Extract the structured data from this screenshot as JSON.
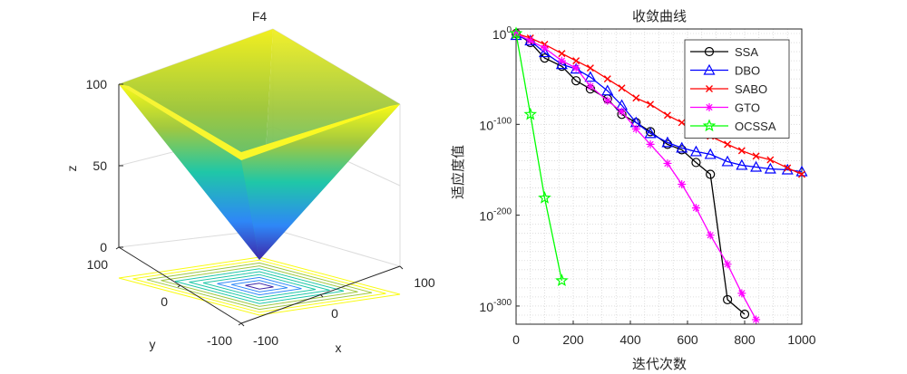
{
  "left_panel": {
    "title": "F4",
    "xlabel": "x",
    "ylabel": "y",
    "zlabel": "z",
    "z_ticks": [
      "0",
      "50",
      "100"
    ],
    "x_ticks": [
      "-100",
      "0",
      "100"
    ],
    "y_ticks": [
      "-100",
      "0",
      "100"
    ],
    "colormap": [
      "#3e26a8",
      "#2e87f7",
      "#1fc7a7",
      "#a0c840",
      "#f9fb15"
    ]
  },
  "chart_data": {
    "type": "line",
    "title": "收敛曲线",
    "xlabel": "迭代次数",
    "ylabel": "适应度值",
    "xlim": [
      0,
      1000
    ],
    "ylim_log10": [
      -320,
      5
    ],
    "y_scale": "log",
    "x_ticks": [
      "0",
      "200",
      "400",
      "600",
      "800",
      "1000"
    ],
    "y_ticks": [
      {
        "base": "10",
        "exp": "0",
        "log10": 0
      },
      {
        "base": "10",
        "exp": "-100",
        "log10": -100
      },
      {
        "base": "10",
        "exp": "-200",
        "log10": -200
      },
      {
        "base": "10",
        "exp": "-300",
        "log10": -300
      }
    ],
    "grid": "minor",
    "legend_position": "top-right",
    "series": [
      {
        "name": "SSA",
        "color": "#000000",
        "marker": "circle",
        "x": [
          0,
          50,
          100,
          160,
          210,
          260,
          320,
          370,
          420,
          470,
          530,
          580,
          630,
          680,
          740,
          800
        ],
        "log10_y": [
          0,
          -10,
          -27,
          -36,
          -52,
          -61,
          -72,
          -89,
          -98,
          -108,
          -122,
          -128,
          -142,
          -155,
          -293,
          -309
        ]
      },
      {
        "name": "DBO",
        "color": "#0000ff",
        "marker": "triangle",
        "x": [
          0,
          50,
          100,
          160,
          210,
          260,
          320,
          370,
          420,
          470,
          530,
          580,
          630,
          680,
          740,
          790,
          840,
          890,
          950,
          1000
        ],
        "log10_y": [
          -2,
          -8,
          -21,
          -34,
          -39,
          -48,
          -63,
          -79,
          -98,
          -110,
          -120,
          -126,
          -130,
          -133,
          -141,
          -145,
          -147,
          -149,
          -150,
          -152
        ]
      },
      {
        "name": "SABO",
        "color": "#ff0000",
        "marker": "x",
        "x": [
          0,
          50,
          100,
          160,
          210,
          260,
          320,
          370,
          420,
          470,
          530,
          580,
          630,
          680,
          740,
          790,
          840,
          890,
          950,
          1000
        ],
        "log10_y": [
          0,
          -5,
          -12,
          -22,
          -30,
          -38,
          -50,
          -60,
          -71,
          -78,
          -90,
          -98,
          -106,
          -113,
          -122,
          -129,
          -135,
          -139,
          -148,
          -155
        ]
      },
      {
        "name": "GTO",
        "color": "#ff00ff",
        "marker": "star",
        "x": [
          0,
          50,
          100,
          160,
          210,
          260,
          320,
          370,
          420,
          470,
          530,
          580,
          630,
          680,
          740,
          790,
          840
        ],
        "log10_y": [
          0,
          -8,
          -16,
          -30,
          -38,
          -58,
          -74,
          -86,
          -105,
          -122,
          -143,
          -166,
          -192,
          -222,
          -254,
          -286,
          -315
        ]
      },
      {
        "name": "OCSSA",
        "color": "#00ff00",
        "marker": "pentagram",
        "x": [
          0,
          50,
          100,
          160
        ],
        "log10_y": [
          0,
          -89,
          -181,
          -272
        ]
      }
    ]
  }
}
